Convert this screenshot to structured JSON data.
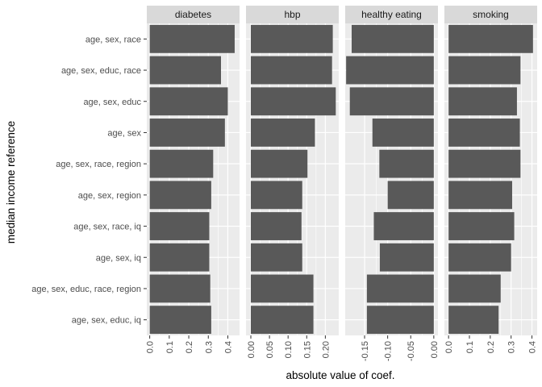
{
  "chart_data": {
    "type": "bar",
    "orientation": "horizontal",
    "xlabel": "absolute value of coef.",
    "ylabel": "median income reference",
    "categories": [
      "age, sex, race",
      "age, sex, educ, race",
      "age, sex, educ",
      "age, sex",
      "age, sex, race, region",
      "age, sex, region",
      "age, sex, race, iq",
      "age, sex, iq",
      "age, sex, educ, race, region",
      "age, sex, educ, iq"
    ],
    "facets": [
      {
        "name": "diabetes",
        "xlim": [
          -0.015,
          0.46
        ],
        "ticks": [
          0.0,
          0.1,
          0.2,
          0.3,
          0.4
        ],
        "tick_labels": [
          "0.0",
          "0.1",
          "0.2",
          "0.3",
          "0.4"
        ],
        "values": [
          0.435,
          0.365,
          0.4,
          0.385,
          0.325,
          0.315,
          0.305,
          0.305,
          0.31,
          0.315
        ]
      },
      {
        "name": "hbp",
        "xlim": [
          -0.013,
          0.236
        ],
        "ticks": [
          0.0,
          0.05,
          0.1,
          0.15,
          0.2
        ],
        "tick_labels": [
          "0.00",
          "0.05",
          "0.10",
          "0.15",
          "0.20"
        ],
        "values": [
          0.22,
          0.218,
          0.228,
          0.172,
          0.152,
          0.138,
          0.136,
          0.138,
          0.168,
          0.168
        ]
      },
      {
        "name": "healthy eating",
        "xlim": [
          -0.192,
          0.009
        ],
        "ticks": [
          -0.15,
          -0.1,
          -0.05,
          0.0
        ],
        "tick_labels": [
          "-0.15",
          "-0.10",
          "-0.05",
          "0.00"
        ],
        "values": [
          -0.178,
          -0.19,
          -0.182,
          -0.133,
          -0.118,
          -0.1,
          -0.13,
          -0.117,
          -0.145,
          -0.145
        ]
      },
      {
        "name": "smoking",
        "xlim": [
          -0.02,
          0.425
        ],
        "ticks": [
          0.0,
          0.1,
          0.2,
          0.3,
          0.4
        ],
        "tick_labels": [
          "0.0",
          "0.1",
          "0.2",
          "0.3",
          "0.4"
        ],
        "values": [
          0.405,
          0.345,
          0.328,
          0.342,
          0.345,
          0.305,
          0.315,
          0.3,
          0.25,
          0.24
        ]
      }
    ],
    "colors": {
      "bar": "#595959",
      "panel_bg": "#ebebeb",
      "strip_bg": "#d9d9d9",
      "grid": "#ffffff"
    },
    "legend": "none",
    "grid": true
  }
}
